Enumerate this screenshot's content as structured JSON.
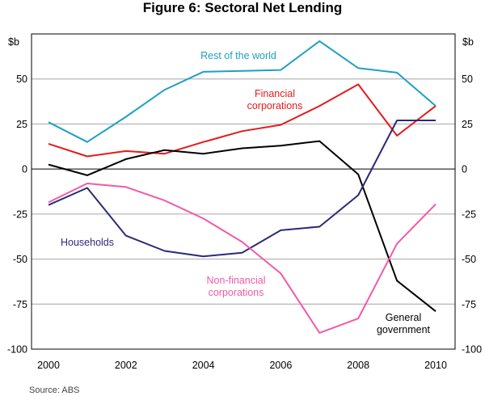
{
  "chart_data": {
    "type": "line",
    "title": "Figure 6: Sectoral Net Lending",
    "ylabel_left": "$b",
    "ylabel_right": "$b",
    "ylim": [
      -100,
      75
    ],
    "yticks": [
      -100,
      -75,
      -50,
      -25,
      0,
      25,
      50
    ],
    "xlim": [
      2000,
      2010
    ],
    "xticks": [
      2000,
      2002,
      2004,
      2006,
      2008,
      2010
    ],
    "x": [
      2000,
      2001,
      2002,
      2003,
      2004,
      2005,
      2006,
      2007,
      2008,
      2009,
      2010
    ],
    "grid": "horizontal",
    "series": [
      {
        "name": "Rest of the world",
        "color": "#1f9fc4",
        "values": [
          26,
          15,
          29,
          44,
          54,
          54.5,
          55,
          71,
          56,
          53.5,
          35
        ]
      },
      {
        "name": "Financial corporations",
        "color": "#e41a1c",
        "values": [
          14,
          7,
          10,
          8.5,
          15,
          21,
          24.5,
          35,
          47,
          18.5,
          35
        ]
      },
      {
        "name": "General government",
        "color": "#000000",
        "values": [
          2.5,
          -3.5,
          5.5,
          10.5,
          8.5,
          11.5,
          13,
          15.5,
          -3,
          -62,
          -79
        ]
      },
      {
        "name": "Households",
        "color": "#2b2a7a",
        "values": [
          -20,
          -10.5,
          -37,
          -45.5,
          -48.5,
          -46.5,
          -34,
          -32,
          -14.5,
          27,
          27
        ]
      },
      {
        "name": "Non-financial corporations",
        "color": "#f05aa6",
        "values": [
          -18.5,
          -8,
          -10,
          -17.5,
          -27.5,
          -40.5,
          -58,
          -91,
          -83,
          -41.5,
          -19.5
        ]
      }
    ],
    "annotations": [
      {
        "lines": [
          "Rest of the world"
        ],
        "series": "Rest of the world"
      },
      {
        "lines": [
          "Financial",
          "corporations"
        ],
        "series": "Financial corporations"
      },
      {
        "lines": [
          "Households"
        ],
        "series": "Households"
      },
      {
        "lines": [
          "Non-financial",
          "corporations"
        ],
        "series": "Non-financial corporations"
      },
      {
        "lines": [
          "General",
          "government"
        ],
        "series": "General government"
      }
    ]
  },
  "source": "Source:  ABS"
}
